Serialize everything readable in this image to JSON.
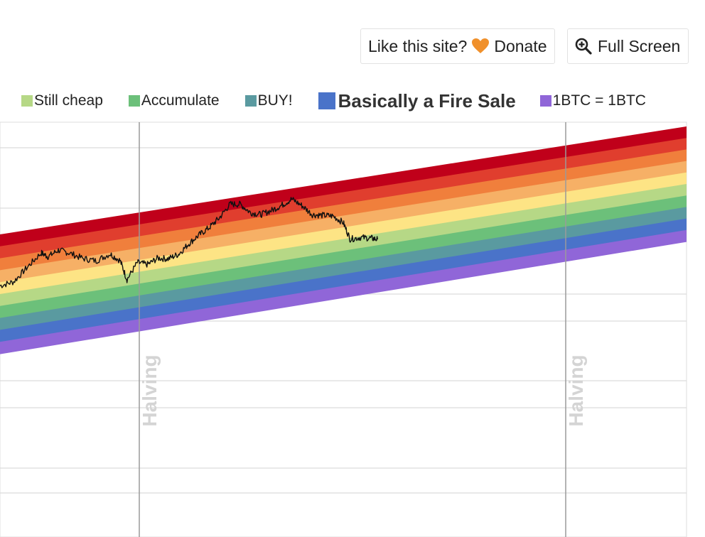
{
  "header": {
    "donate_text": "Like this site?",
    "donate_label": "Donate",
    "fullscreen_label": "Full Screen",
    "heart_color": "#f0902b"
  },
  "chart_data": {
    "type": "area",
    "legend_visible": [
      {
        "label": "Still cheap",
        "color": "#b6d886",
        "emphasis": false
      },
      {
        "label": "Accumulate",
        "color": "#6cc07a",
        "emphasis": false
      },
      {
        "label": "BUY!",
        "color": "#5a9aa0",
        "emphasis": false
      },
      {
        "label": "Basically a Fire Sale",
        "color": "#4a73c9",
        "emphasis": true
      },
      {
        "label": "1BTC = 1BTC",
        "color": "#9066d8",
        "emphasis": false
      }
    ],
    "bands": [
      {
        "color": "#c0001a"
      },
      {
        "color": "#e03e2e"
      },
      {
        "color": "#f07f3c"
      },
      {
        "color": "#f6b066"
      },
      {
        "color": "#fde485"
      },
      {
        "color": "#b6d886"
      },
      {
        "color": "#6cc07a"
      },
      {
        "color": "#5a9aa0"
      },
      {
        "color": "#4a73c9"
      },
      {
        "color": "#9066d8"
      }
    ],
    "annotations": [
      {
        "label": "Halving",
        "position": "first-halving"
      },
      {
        "label": "Halving",
        "position": "second-halving"
      }
    ],
    "series": [
      {
        "line_color": "#111111",
        "points": [
          [
            0.0,
            5.7
          ],
          [
            0.02,
            5.85
          ],
          [
            0.04,
            6.9
          ],
          [
            0.06,
            7.9
          ],
          [
            0.07,
            7.5
          ],
          [
            0.085,
            7.9
          ],
          [
            0.1,
            7.55
          ],
          [
            0.12,
            6.9
          ],
          [
            0.14,
            6.5
          ],
          [
            0.16,
            6.9
          ],
          [
            0.175,
            6.2
          ],
          [
            0.185,
            4.5
          ],
          [
            0.2,
            5.8
          ],
          [
            0.215,
            5.5
          ],
          [
            0.23,
            5.9
          ],
          [
            0.245,
            5.7
          ],
          [
            0.26,
            5.95
          ],
          [
            0.275,
            6.7
          ],
          [
            0.29,
            7.3
          ],
          [
            0.305,
            7.8
          ],
          [
            0.32,
            8.5
          ],
          [
            0.335,
            9.5
          ],
          [
            0.35,
            9.35
          ],
          [
            0.365,
            8.5
          ],
          [
            0.38,
            8.2
          ],
          [
            0.395,
            8.4
          ],
          [
            0.41,
            8.7
          ],
          [
            0.425,
            9.1
          ],
          [
            0.44,
            8.4
          ],
          [
            0.455,
            7.5
          ],
          [
            0.47,
            7.3
          ],
          [
            0.485,
            7.1
          ],
          [
            0.5,
            6.4
          ],
          [
            0.51,
            4.9
          ],
          [
            0.525,
            4.9
          ],
          [
            0.54,
            4.7
          ],
          [
            0.55,
            4.5
          ]
        ]
      }
    ]
  }
}
